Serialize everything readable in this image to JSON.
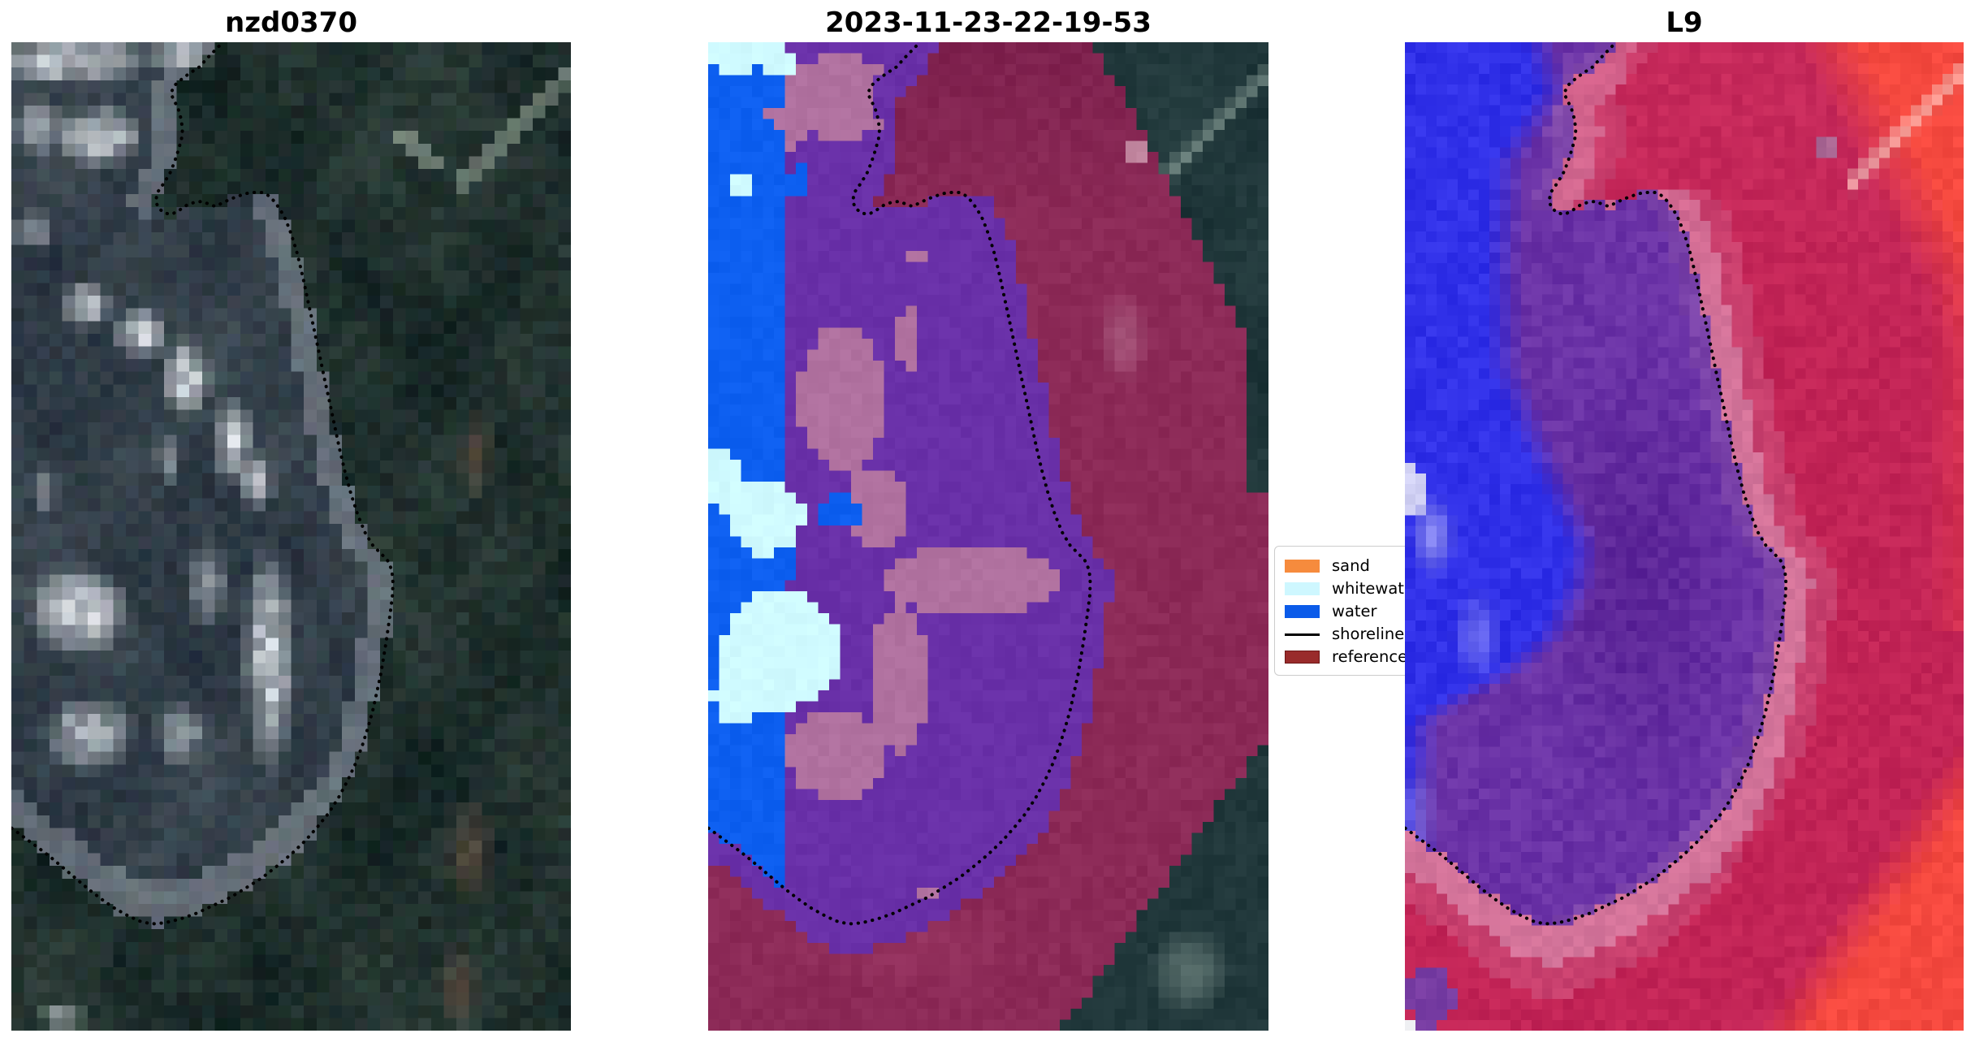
{
  "figure": {
    "background": "#ffffff"
  },
  "panels": [
    {
      "title": "nzd0370",
      "palette": {
        "water": "#323e48",
        "land": "#20302d",
        "beach": "#969ea8",
        "white": "#eef2f7",
        "streak": "#a2b0a2",
        "brown": "#5e4e40"
      }
    },
    {
      "title": "2023-11-23-22-19-53",
      "palette": {
        "water": "#0d5ff0",
        "whitewater": "#cffaff",
        "other": "#6930a8",
        "sand_wet": "#b0719f",
        "reference": "#8c2a57",
        "green": "#20373a",
        "streak": "#8fa49c"
      }
    },
    {
      "title": "L9",
      "palette": {
        "water": "#3030e8",
        "water_light": "#8888f2",
        "land_wet": "#6a32a6",
        "land_wet_dark": "#582294",
        "land": "#c22456",
        "land_bright": "#f5493f",
        "shore_halo": "#d4749a"
      }
    }
  ],
  "legend": {
    "items": [
      {
        "label": "sand",
        "color": "#f68b3d",
        "type": "patch"
      },
      {
        "label": "whitewater",
        "color": "#cef7ff",
        "type": "patch"
      },
      {
        "label": "water",
        "color": "#0b5be9",
        "type": "patch"
      },
      {
        "label": "shoreline",
        "color": "#000000",
        "type": "line"
      },
      {
        "label": "reference",
        "color": "#992b2b",
        "border": "#6d1717",
        "type": "patch"
      }
    ]
  },
  "shoreline": {
    "color": "#000000",
    "style": "dotted",
    "points": [
      [
        0.371,
        0.004
      ],
      [
        0.352,
        0.015
      ],
      [
        0.336,
        0.025
      ],
      [
        0.317,
        0.032
      ],
      [
        0.303,
        0.038
      ],
      [
        0.291,
        0.044
      ],
      [
        0.285,
        0.052
      ],
      [
        0.291,
        0.059
      ],
      [
        0.298,
        0.067
      ],
      [
        0.303,
        0.077
      ],
      [
        0.306,
        0.088
      ],
      [
        0.304,
        0.098
      ],
      [
        0.298,
        0.11
      ],
      [
        0.291,
        0.122
      ],
      [
        0.283,
        0.133
      ],
      [
        0.272,
        0.143
      ],
      [
        0.261,
        0.152
      ],
      [
        0.258,
        0.161
      ],
      [
        0.263,
        0.168
      ],
      [
        0.274,
        0.173
      ],
      [
        0.287,
        0.174
      ],
      [
        0.3,
        0.17
      ],
      [
        0.313,
        0.165
      ],
      [
        0.327,
        0.162
      ],
      [
        0.341,
        0.161
      ],
      [
        0.354,
        0.164
      ],
      [
        0.364,
        0.166
      ],
      [
        0.376,
        0.163
      ],
      [
        0.39,
        0.159
      ],
      [
        0.404,
        0.156
      ],
      [
        0.419,
        0.153
      ],
      [
        0.434,
        0.152
      ],
      [
        0.448,
        0.152
      ],
      [
        0.459,
        0.155
      ],
      [
        0.47,
        0.161
      ],
      [
        0.48,
        0.169
      ],
      [
        0.489,
        0.178
      ],
      [
        0.497,
        0.189
      ],
      [
        0.504,
        0.201
      ],
      [
        0.511,
        0.214
      ],
      [
        0.517,
        0.228
      ],
      [
        0.523,
        0.243
      ],
      [
        0.529,
        0.259
      ],
      [
        0.536,
        0.277
      ],
      [
        0.543,
        0.296
      ],
      [
        0.551,
        0.317
      ],
      [
        0.559,
        0.339
      ],
      [
        0.568,
        0.362
      ],
      [
        0.577,
        0.386
      ],
      [
        0.586,
        0.41
      ],
      [
        0.596,
        0.434
      ],
      [
        0.607,
        0.457
      ],
      [
        0.619,
        0.478
      ],
      [
        0.632,
        0.496
      ],
      [
        0.646,
        0.509
      ],
      [
        0.66,
        0.517
      ],
      [
        0.672,
        0.524
      ],
      [
        0.68,
        0.534
      ],
      [
        0.682,
        0.547
      ],
      [
        0.681,
        0.56
      ],
      [
        0.678,
        0.574
      ],
      [
        0.674,
        0.59
      ],
      [
        0.67,
        0.606
      ],
      [
        0.665,
        0.623
      ],
      [
        0.66,
        0.64
      ],
      [
        0.653,
        0.658
      ],
      [
        0.646,
        0.676
      ],
      [
        0.637,
        0.694
      ],
      [
        0.627,
        0.712
      ],
      [
        0.615,
        0.73
      ],
      [
        0.601,
        0.747
      ],
      [
        0.585,
        0.764
      ],
      [
        0.567,
        0.78
      ],
      [
        0.547,
        0.794
      ],
      [
        0.525,
        0.808
      ],
      [
        0.501,
        0.821
      ],
      [
        0.476,
        0.833
      ],
      [
        0.449,
        0.845
      ],
      [
        0.421,
        0.855
      ],
      [
        0.392,
        0.865
      ],
      [
        0.362,
        0.873
      ],
      [
        0.332,
        0.881
      ],
      [
        0.302,
        0.887
      ],
      [
        0.274,
        0.891
      ],
      [
        0.25,
        0.892
      ],
      [
        0.228,
        0.889
      ],
      [
        0.206,
        0.883
      ],
      [
        0.184,
        0.876
      ],
      [
        0.161,
        0.867
      ],
      [
        0.138,
        0.857
      ],
      [
        0.115,
        0.846
      ],
      [
        0.092,
        0.835
      ],
      [
        0.069,
        0.824
      ],
      [
        0.046,
        0.814
      ],
      [
        0.024,
        0.805
      ],
      [
        0.005,
        0.797
      ],
      [
        0.0,
        0.795
      ]
    ]
  }
}
